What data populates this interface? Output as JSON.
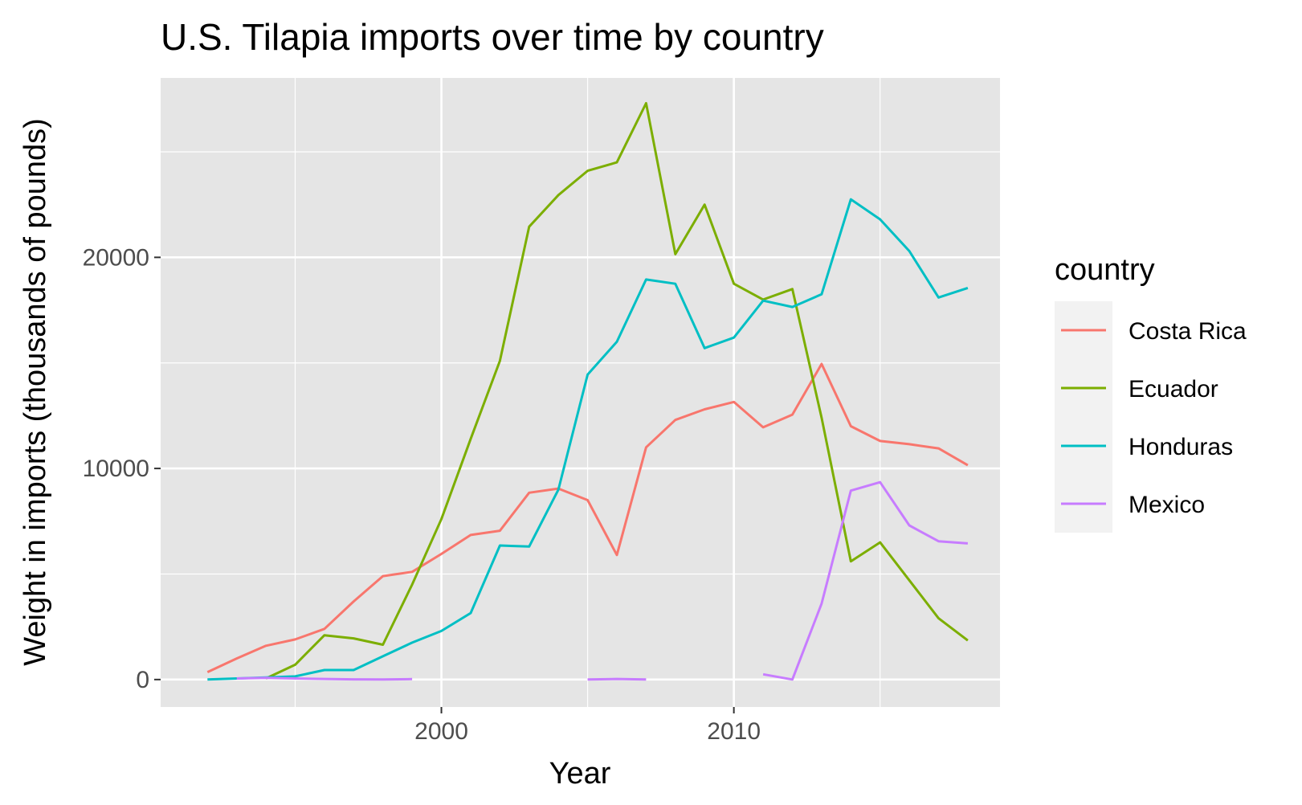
{
  "chart_data": {
    "type": "line",
    "title": "U.S. Tilapia imports over time by country",
    "xlabel": "Year",
    "ylabel": "Weight in imports (thousands of pounds)",
    "xlim": [
      1990.4,
      2019.1
    ],
    "ylim": [
      -1300,
      28500
    ],
    "x_major_ticks": [
      2000,
      2010
    ],
    "x_major_tick_labels": [
      "2000",
      "2010"
    ],
    "x_minor_ticks": [
      1995,
      2005,
      2015
    ],
    "y_major_ticks": [
      0,
      10000,
      20000
    ],
    "y_major_tick_labels": [
      "0",
      "10000",
      "20000"
    ],
    "y_minor_ticks": [
      5000,
      15000,
      25000
    ],
    "grid": true,
    "legend_title": "country",
    "legend_position": "right",
    "colors": {
      "panel_background": "#e5e5e5",
      "grid": "#ffffff",
      "tick_label": "#4d4d4d",
      "legend_key_background": "#f2f2f2"
    },
    "series": [
      {
        "name": "Costa Rica",
        "color": "#F8766D",
        "points": [
          [
            1992,
            350
          ],
          [
            1993,
            1000
          ],
          [
            1994,
            1600
          ],
          [
            1995,
            1900
          ],
          [
            1996,
            2400
          ],
          [
            1997,
            3700
          ],
          [
            1998,
            4900
          ],
          [
            1999,
            5100
          ],
          [
            2000,
            5950
          ],
          [
            2001,
            6850
          ],
          [
            2002,
            7050
          ],
          [
            2003,
            8850
          ],
          [
            2004,
            9050
          ],
          [
            2005,
            8500
          ],
          [
            2006,
            5900
          ],
          [
            2007,
            11000
          ],
          [
            2008,
            12300
          ],
          [
            2009,
            12800
          ],
          [
            2010,
            13150
          ],
          [
            2011,
            11950
          ],
          [
            2012,
            12550
          ],
          [
            2013,
            14950
          ],
          [
            2014,
            12000
          ],
          [
            2015,
            11300
          ],
          [
            2016,
            11150
          ],
          [
            2017,
            10950
          ],
          [
            2018,
            10150
          ]
        ]
      },
      {
        "name": "Ecuador",
        "color": "#7CAE00",
        "points": [
          [
            1994,
            50
          ],
          [
            1995,
            700
          ],
          [
            1996,
            2100
          ],
          [
            1997,
            1950
          ],
          [
            1998,
            1650
          ],
          [
            1999,
            4500
          ],
          [
            2000,
            7600
          ],
          [
            2001,
            11400
          ],
          [
            2002,
            15100
          ],
          [
            2003,
            21450
          ],
          [
            2004,
            22950
          ],
          [
            2005,
            24100
          ],
          [
            2006,
            24500
          ],
          [
            2007,
            27300
          ],
          [
            2008,
            20150
          ],
          [
            2009,
            22500
          ],
          [
            2010,
            18750
          ],
          [
            2011,
            18000
          ],
          [
            2012,
            18500
          ],
          [
            2013,
            12400
          ],
          [
            2014,
            5600
          ],
          [
            2015,
            6500
          ],
          [
            2016,
            4700
          ],
          [
            2017,
            2900
          ],
          [
            2018,
            1850
          ]
        ]
      },
      {
        "name": "Honduras",
        "color": "#00BFC4",
        "points": [
          [
            1992,
            0
          ],
          [
            1993,
            50
          ],
          [
            1994,
            100
          ],
          [
            1995,
            150
          ],
          [
            1996,
            450
          ],
          [
            1997,
            450
          ],
          [
            1998,
            1100
          ],
          [
            1999,
            1750
          ],
          [
            2000,
            2300
          ],
          [
            2001,
            3150
          ],
          [
            2002,
            6350
          ],
          [
            2003,
            6300
          ],
          [
            2004,
            9000
          ],
          [
            2005,
            14450
          ],
          [
            2006,
            16000
          ],
          [
            2007,
            18950
          ],
          [
            2008,
            18750
          ],
          [
            2009,
            15700
          ],
          [
            2010,
            16200
          ],
          [
            2011,
            17950
          ],
          [
            2012,
            17650
          ],
          [
            2013,
            18250
          ],
          [
            2014,
            22750
          ],
          [
            2015,
            21800
          ],
          [
            2016,
            20300
          ],
          [
            2017,
            18100
          ],
          [
            2018,
            18550
          ]
        ]
      },
      {
        "name": "Mexico",
        "color": "#C77CFF",
        "segments": [
          [
            [
              1993,
              50
            ],
            [
              1994,
              80
            ],
            [
              1995,
              50
            ],
            [
              1996,
              30
            ],
            [
              1997,
              10
            ],
            [
              1998,
              0
            ],
            [
              1999,
              20
            ]
          ],
          [
            [
              2005,
              0
            ],
            [
              2006,
              30
            ],
            [
              2007,
              0
            ]
          ],
          [
            [
              2011,
              250
            ],
            [
              2012,
              0
            ],
            [
              2013,
              3600
            ],
            [
              2014,
              8950
            ],
            [
              2015,
              9350
            ],
            [
              2016,
              7300
            ],
            [
              2017,
              6550
            ],
            [
              2018,
              6450
            ]
          ]
        ]
      }
    ]
  }
}
